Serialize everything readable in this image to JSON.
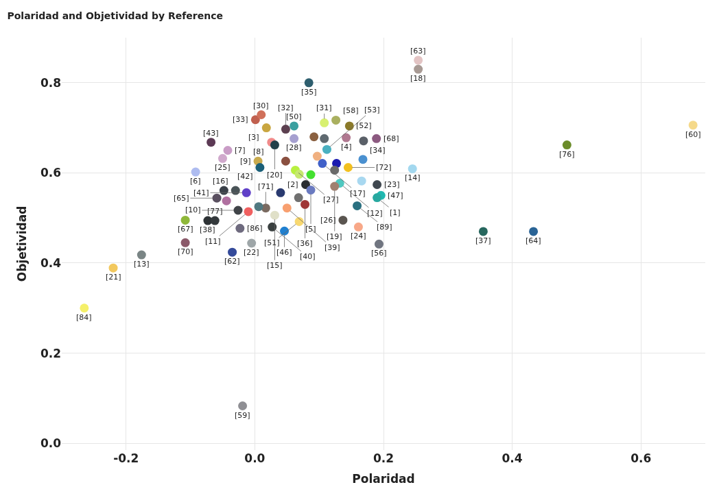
{
  "chart_data": {
    "type": "scatter",
    "title": "Polaridad and Objetividad by Reference",
    "xlabel": "Polaridad",
    "ylabel": "Objetividad",
    "xlim": [
      -0.3,
      0.7
    ],
    "ylim": [
      -0.015,
      0.9
    ],
    "xticks": [
      -0.2,
      {
        "value": 0,
        "label": "0.0"
      },
      0.2,
      0.4,
      0.6
    ],
    "yticks": [
      {
        "value": 0,
        "label": "0.0"
      },
      0.2,
      0.4,
      0.6,
      0.8
    ],
    "grid": true,
    "marker": "circle",
    "legend": false,
    "series": [
      {
        "name": "[63]",
        "color": "#e3c4c4",
        "x": [
          0.254
        ],
        "values": [
          0.85
        ]
      },
      {
        "name": "[18]",
        "color": "#a89a94",
        "x": [
          0.254
        ],
        "values": [
          0.83
        ]
      },
      {
        "name": "[35]",
        "color": "#2e5e6e",
        "x": [
          0.084
        ],
        "values": [
          0.8
        ]
      },
      {
        "name": "[60]",
        "color": "#f5d98a",
        "x": [
          0.681
        ],
        "values": [
          0.706
        ]
      },
      {
        "name": "[76]",
        "color": "#6b8c2a",
        "x": [
          0.485
        ],
        "values": [
          0.662
        ]
      },
      {
        "name": "[37]",
        "color": "#27675e",
        "x": [
          0.355
        ],
        "values": [
          0.47
        ]
      },
      {
        "name": "[64]",
        "color": "#2a6496",
        "x": [
          0.433
        ],
        "values": [
          0.47
        ]
      },
      {
        "name": "[14]",
        "color": "#a3d8ef",
        "x": [
          0.245
        ],
        "values": [
          0.609
        ]
      },
      {
        "name": "[84]",
        "color": "#f5f06a",
        "x": [
          -0.265
        ],
        "values": [
          0.3
        ]
      },
      {
        "name": "[21]",
        "color": "#f2c85e",
        "x": [
          -0.22
        ],
        "values": [
          0.389
        ]
      },
      {
        "name": "[13]",
        "color": "#7a8585",
        "x": [
          -0.176
        ],
        "values": [
          0.418
        ]
      },
      {
        "name": "[59]",
        "color": "#8f8f94",
        "x": [
          -0.019
        ],
        "values": [
          0.083
        ]
      },
      {
        "name": "[67]",
        "color": "#8fb83a",
        "x": [
          -0.108
        ],
        "values": [
          0.495
        ]
      },
      {
        "name": "[70]",
        "color": "#8b5a6a",
        "x": [
          -0.108
        ],
        "values": [
          0.445
        ]
      },
      {
        "name": "[62]",
        "color": "#344a9a",
        "x": [
          -0.035
        ],
        "values": [
          0.424
        ]
      },
      {
        "name": "[22]",
        "color": "#9ea6a8",
        "x": [
          -0.005
        ],
        "values": [
          0.444
        ]
      },
      {
        "name": "[86]",
        "color": "#6e6a7e",
        "x": [
          -0.023
        ],
        "values": [
          0.477
        ]
      },
      {
        "name": "[38]",
        "color": "#2d3235",
        "x": [
          -0.073
        ],
        "values": [
          0.494
        ]
      },
      {
        "name": "[77]",
        "color": "#34393c",
        "x": [
          -0.062
        ],
        "values": [
          0.494
        ]
      },
      {
        "name": "[6]",
        "color": "#aebcf0",
        "x": [
          -0.092
        ],
        "values": [
          0.602
        ]
      },
      {
        "name": "[43]",
        "color": "#5c3a55",
        "x": [
          -0.068
        ],
        "values": [
          0.668
        ]
      },
      {
        "name": "[7]",
        "color": "#c99cc6",
        "x": [
          -0.042
        ],
        "values": [
          0.65
        ]
      },
      {
        "name": "[25]",
        "color": "#d0a8cc",
        "x": [
          -0.05
        ],
        "values": [
          0.632
        ]
      },
      {
        "name": "[33]",
        "color": "#c0604f",
        "x": [
          0.001
        ],
        "values": [
          0.718
        ]
      },
      {
        "name": "[30]",
        "color": "#d0705a",
        "x": [
          0.01
        ],
        "values": [
          0.729
        ]
      },
      {
        "name": "[3]",
        "color": "#c9a640",
        "x": [
          0.018
        ],
        "values": [
          0.7
        ]
      },
      {
        "name": "[8]",
        "color": "#f08a8a",
        "x": [
          0.026
        ],
        "values": [
          0.668
        ]
      },
      {
        "name": "[50]",
        "color": "#3aa0a0",
        "x": [
          0.061
        ],
        "values": [
          0.704
        ]
      },
      {
        "name": "[32]",
        "color": "#5c4050",
        "x": [
          0.048
        ],
        "values": [
          0.697
        ]
      },
      {
        "name": "[28]",
        "color": "#a6a0d0",
        "x": [
          0.061
        ],
        "values": [
          0.676
        ]
      },
      {
        "name": "[20]",
        "color": "#22404a",
        "x": [
          0.031
        ],
        "values": [
          0.662
        ]
      },
      {
        "name": "[9]",
        "color": "#c8aa4e",
        "x": [
          0.005
        ],
        "values": [
          0.626
        ]
      },
      {
        "name": "[42]",
        "color": "#1a5f78",
        "x": [
          0.008
        ],
        "values": [
          0.612
        ]
      },
      {
        "name": "[27]",
        "color": "#b8f040",
        "x": [
          0.063
        ],
        "values": [
          0.606
        ]
      },
      {
        "name": "[2]",
        "color": "#2a2d30",
        "x": [
          0.079
        ],
        "values": [
          0.574
        ]
      },
      {
        "name": "[5]",
        "color": "#6a7ac0",
        "x": [
          0.087
        ],
        "values": [
          0.562
        ]
      },
      {
        "name": "[31]",
        "color": "#d8f070",
        "x": [
          0.108
        ],
        "values": [
          0.711
        ]
      },
      {
        "name": "[58]",
        "color": "#aab060",
        "x": [
          0.126
        ],
        "values": [
          0.717
        ]
      },
      {
        "name": "[52]",
        "color": "#8b7a2a",
        "x": [
          0.147
        ],
        "values": [
          0.704
        ]
      },
      {
        "name": "[4]",
        "color": "#b07890",
        "x": [
          0.142
        ],
        "values": [
          0.678
        ]
      },
      {
        "name": "[68]",
        "color": "#8c5a80",
        "x": [
          0.189
        ],
        "values": [
          0.676
        ]
      },
      {
        "name": "[53]",
        "color": "#4ab0c0",
        "x": [
          0.112
        ],
        "values": [
          0.652
        ]
      },
      {
        "name": "[17]",
        "color": "#4060c8",
        "x": [
          0.105
        ],
        "values": [
          0.621
        ]
      },
      {
        "name": "[72]",
        "color": "#f2c020",
        "x": [
          0.145
        ],
        "values": [
          0.612
        ]
      },
      {
        "name": "[34]",
        "color": "#4a90d0",
        "x": [
          0.168
        ],
        "values": [
          0.63
        ]
      },
      {
        "name": "[12]",
        "color": "#50c8c0",
        "x": [
          0.132
        ],
        "values": [
          0.577
        ]
      },
      {
        "name": "[23]",
        "color": "#404850",
        "x": [
          0.19
        ],
        "values": [
          0.574
        ]
      },
      {
        "name": "[47]",
        "color": "#20b8b0",
        "x": [
          0.196
        ],
        "values": [
          0.55
        ]
      },
      {
        "name": "[1]",
        "color": "#28a8a0",
        "x": [
          0.19
        ],
        "values": [
          0.545
        ]
      },
      {
        "name": "[89]",
        "color": "#2a7080",
        "x": [
          0.159
        ],
        "values": [
          0.527
        ]
      },
      {
        "name": "[19]",
        "color": "#a08070",
        "x": [
          0.124
        ],
        "values": [
          0.57
        ]
      },
      {
        "name": "[26]",
        "color": "#5a5550",
        "x": [
          0.137
        ],
        "values": [
          0.495
        ]
      },
      {
        "name": "[24]",
        "color": "#f8a888",
        "x": [
          0.161
        ],
        "values": [
          0.48
        ]
      },
      {
        "name": "[56]",
        "color": "#707580",
        "x": [
          0.193
        ],
        "values": [
          0.442
        ]
      },
      {
        "name": "[36]",
        "color": "#a03838",
        "x": [
          0.078
        ],
        "values": [
          0.53
        ]
      },
      {
        "name": "[51]",
        "color": "#f8d870",
        "x": [
          0.069
        ],
        "values": [
          0.492
        ]
      },
      {
        "name": "[46]",
        "color": "#2080d0",
        "x": [
          0.046
        ],
        "values": [
          0.471
        ]
      },
      {
        "name": "[40]",
        "color": "#3a4040",
        "x": [
          0.027
        ],
        "values": [
          0.48
        ]
      },
      {
        "name": "[15]",
        "color": "#e0e0c8",
        "x": [
          0.031
        ],
        "values": [
          0.506
        ]
      },
      {
        "name": "[39]",
        "color": "#f8a070",
        "x": [
          0.05
        ],
        "values": [
          0.522
        ]
      },
      {
        "name": "[71]",
        "color": "#7a6a60",
        "x": [
          0.017
        ],
        "values": [
          0.522
        ]
      },
      {
        "name": "[11]",
        "color": "#f06060",
        "x": [
          -0.01
        ],
        "values": [
          0.514
        ]
      },
      {
        "name": "[10]",
        "color": "#404448",
        "x": [
          -0.026
        ],
        "values": [
          0.517
        ]
      },
      {
        "name": "[41]",
        "color": "#6040c8",
        "x": [
          -0.013
        ],
        "values": [
          0.556
        ]
      },
      {
        "name": "[16]",
        "color": "#4a5458",
        "x": [
          -0.03
        ],
        "values": [
          0.561
        ]
      },
      {
        "name": "[65]",
        "color": "#5a5060",
        "x": [
          -0.059
        ],
        "values": [
          0.544
        ]
      },
      {
        "color": "#44e030",
        "x": [
          0.087
        ],
        "values": [
          0.596
        ]
      },
      {
        "color": "#8a6040",
        "x": [
          0.092
        ],
        "values": [
          0.68
        ]
      },
      {
        "color": "#5f6a70",
        "x": [
          0.108
        ],
        "values": [
          0.676
        ]
      },
      {
        "color": "#5a6068",
        "x": [
          0.169
        ],
        "values": [
          0.671
        ]
      },
      {
        "color": "#f0b080",
        "x": [
          0.097
        ],
        "values": [
          0.637
        ]
      },
      {
        "color": "#1a1ab0",
        "x": [
          0.127
        ],
        "values": [
          0.621
        ]
      },
      {
        "color": "#a8d8f0",
        "x": [
          0.166
        ],
        "values": [
          0.582
        ]
      },
      {
        "color": "#6a6a6a",
        "x": [
          0.124
        ],
        "values": [
          0.606
        ]
      },
      {
        "color": "#707070",
        "x": [
          0.068
        ],
        "values": [
          0.545
        ]
      },
      {
        "color": "#2a3a70",
        "x": [
          0.04
        ],
        "values": [
          0.556
        ]
      },
      {
        "color": "#507880",
        "x": [
          0.006
        ],
        "values": [
          0.525
        ]
      },
      {
        "color": "#3a4048",
        "x": [
          -0.048
        ],
        "values": [
          0.561
        ]
      },
      {
        "color": "#b070a0",
        "x": [
          -0.044
        ],
        "values": [
          0.538
        ]
      },
      {
        "color": "#8a5040",
        "x": [
          0.048
        ],
        "values": [
          0.626
        ]
      },
      {
        "color": "#c6e870",
        "x": [
          0.069
        ],
        "values": [
          0.597
        ]
      }
    ]
  }
}
